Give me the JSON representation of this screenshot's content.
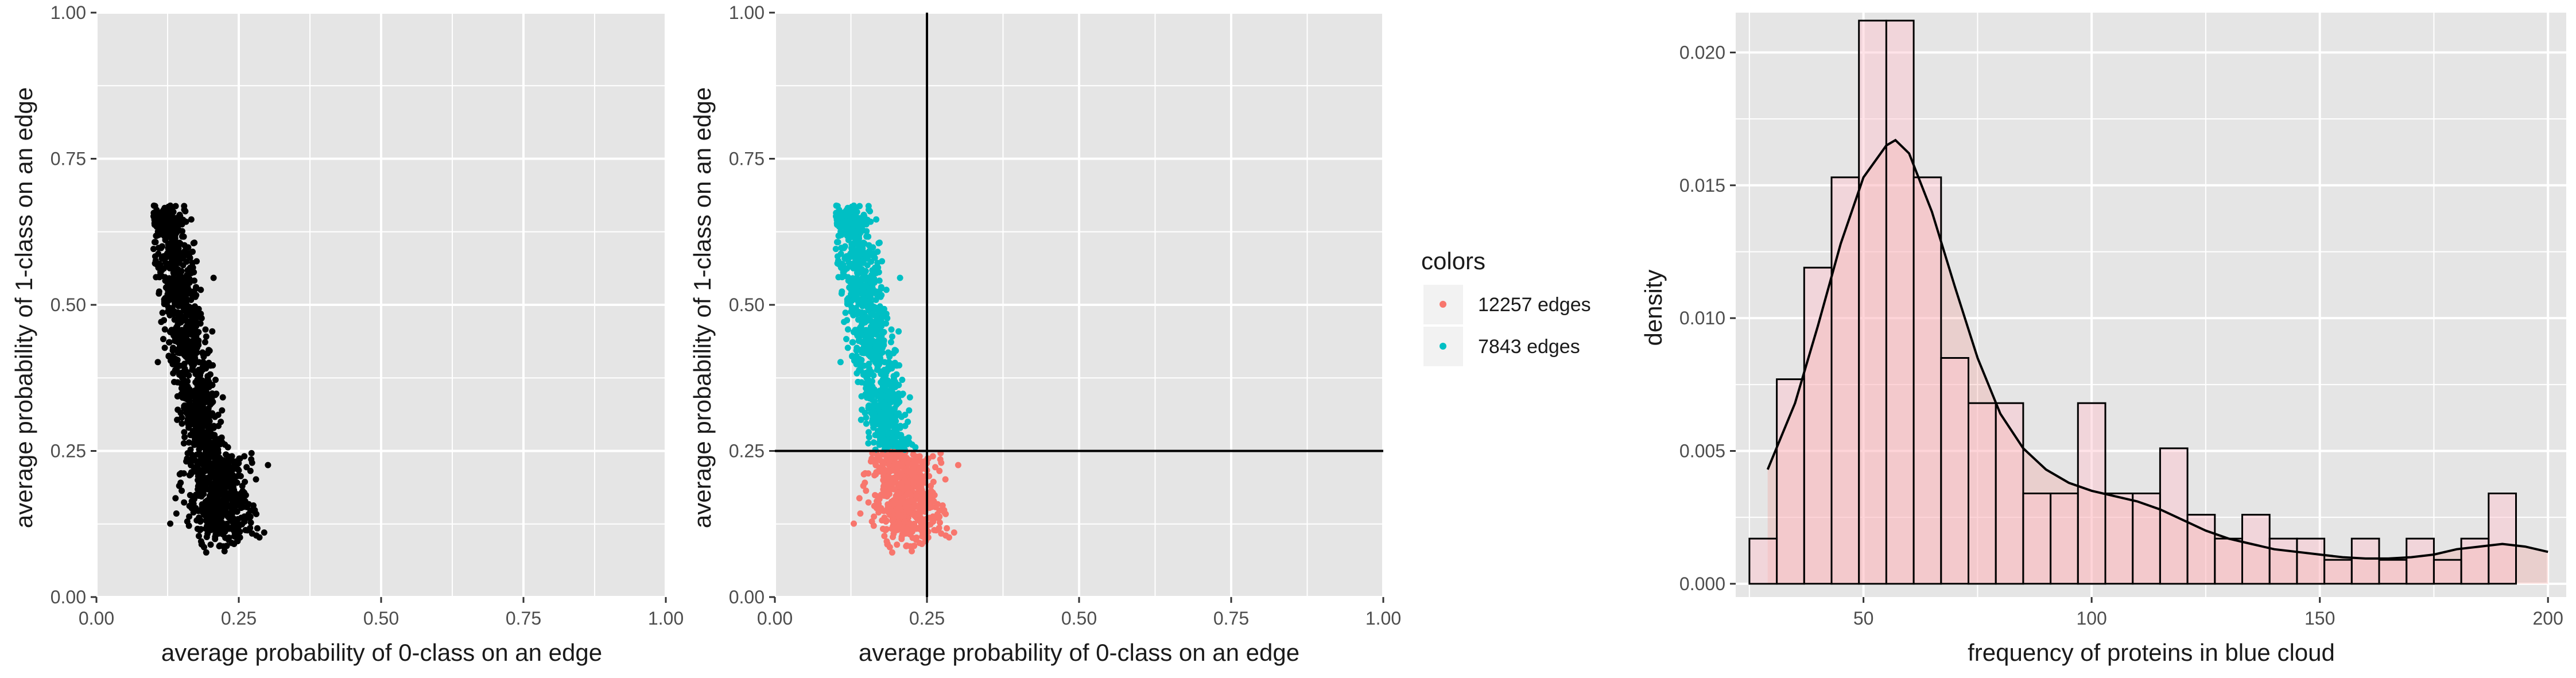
{
  "colors": {
    "panel_bg": "#e5e5e5",
    "grid": "#ffffff",
    "black": "#000000",
    "red": "#f8766d",
    "teal": "#00bfc4",
    "fill_pink": "#ffc0cb",
    "area_red": "#f8766d"
  },
  "chart_data": [
    {
      "type": "scatter",
      "xlabel": "average probability of 0-class on an edge",
      "ylabel": "average probability of 1-class on an edge",
      "xlim": [
        0,
        1
      ],
      "ylim": [
        0,
        1
      ],
      "x_ticks": [
        "0.00",
        "0.25",
        "0.50",
        "0.75",
        "1.00"
      ],
      "y_ticks": [
        "0.00",
        "0.25",
        "0.50",
        "0.75",
        "1.00"
      ],
      "grid": true,
      "series": [
        {
          "color": "#000000",
          "cloud": [
            [
              0.12,
              0.67
            ],
            [
              0.14,
              0.6
            ],
            [
              0.16,
              0.5
            ],
            [
              0.17,
              0.4
            ],
            [
              0.18,
              0.3
            ],
            [
              0.2,
              0.22
            ],
            [
              0.22,
              0.15
            ],
            [
              0.25,
              0.18
            ],
            [
              0.28,
              0.17
            ]
          ]
        }
      ]
    },
    {
      "type": "scatter",
      "xlabel": "average probability of 0-class on an edge",
      "ylabel": "average probability of 1-class on an edge",
      "xlim": [
        0,
        1
      ],
      "ylim": [
        0,
        1
      ],
      "x_ticks": [
        "0.00",
        "0.25",
        "0.50",
        "0.75",
        "1.00"
      ],
      "y_ticks": [
        "0.00",
        "0.25",
        "0.50",
        "0.75",
        "1.00"
      ],
      "grid": true,
      "reference_lines": {
        "vline_x": 0.25,
        "hline_y": 0.25
      },
      "legend": {
        "title": "colors",
        "position": "right",
        "entries": [
          {
            "label": "12257 edges",
            "color": "#f8766d"
          },
          {
            "label": "7843 edges",
            "color": "#00bfc4"
          }
        ]
      },
      "series": [
        {
          "name": "12257 edges",
          "color": "#f8766d",
          "cloud": [
            [
              0.16,
              0.25
            ],
            [
              0.2,
              0.2
            ],
            [
              0.23,
              0.15
            ],
            [
              0.26,
              0.18
            ],
            [
              0.28,
              0.17
            ]
          ]
        },
        {
          "name": "7843 edges",
          "color": "#00bfc4",
          "cloud": [
            [
              0.12,
              0.67
            ],
            [
              0.14,
              0.6
            ],
            [
              0.16,
              0.5
            ],
            [
              0.17,
              0.4
            ],
            [
              0.18,
              0.3
            ],
            [
              0.19,
              0.26
            ]
          ]
        }
      ]
    },
    {
      "type": "histogram",
      "xlabel": "frequency of proteins in blue cloud",
      "ylabel": "density",
      "xlim": [
        22,
        204
      ],
      "ylim": [
        -0.0005,
        0.0215
      ],
      "x_ticks": [
        "50",
        "100",
        "150",
        "200"
      ],
      "y_ticks": [
        "0.000",
        "0.005",
        "0.010",
        "0.015",
        "0.020"
      ],
      "grid": true,
      "bins": {
        "start": 25,
        "width": 6,
        "density": [
          0.0017,
          0.0077,
          0.0119,
          0.0153,
          0.0212,
          0.0212,
          0.0153,
          0.0085,
          0.0068,
          0.0068,
          0.0034,
          0.0034,
          0.0068,
          0.0034,
          0.0034,
          0.0051,
          0.0026,
          0.0017,
          0.0026,
          0.0017,
          0.0017,
          0.0009,
          0.0017,
          0.0009,
          0.0017,
          0.0009,
          0.0017,
          0.0034
        ]
      },
      "density_curve": {
        "x": [
          29,
          35,
          40,
          45,
          50,
          55,
          57,
          60,
          65,
          70,
          75,
          80,
          85,
          90,
          95,
          100,
          105,
          110,
          115,
          120,
          125,
          130,
          135,
          140,
          145,
          150,
          155,
          160,
          165,
          170,
          175,
          180,
          185,
          190,
          195,
          200
        ],
        "y": [
          0.0043,
          0.0068,
          0.0097,
          0.0128,
          0.0153,
          0.0165,
          0.0167,
          0.0162,
          0.014,
          0.0112,
          0.0085,
          0.0064,
          0.0051,
          0.0043,
          0.0038,
          0.0035,
          0.0033,
          0.0031,
          0.0028,
          0.0024,
          0.002,
          0.0017,
          0.0015,
          0.0013,
          0.0012,
          0.0011,
          0.001,
          0.00095,
          0.00095,
          0.001,
          0.0011,
          0.0013,
          0.0014,
          0.0015,
          0.0014,
          0.0012
        ]
      }
    }
  ]
}
